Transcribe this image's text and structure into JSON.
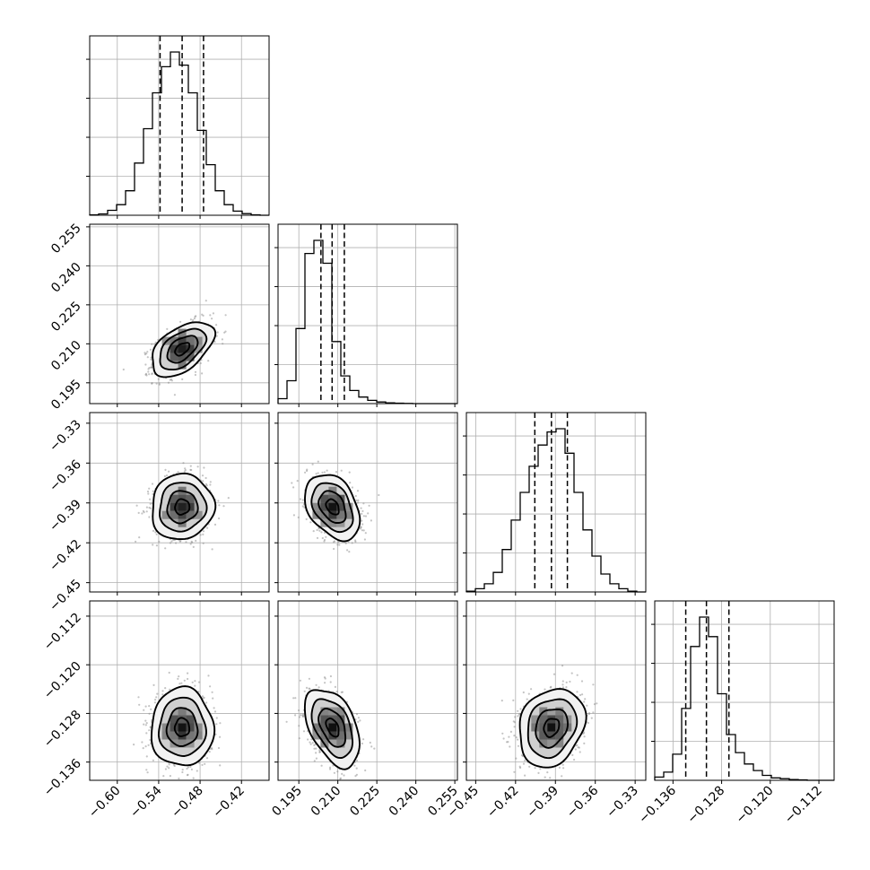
{
  "chart_data": {
    "type": "corner",
    "grid": true,
    "dim": 4,
    "params": [
      {
        "range": [
          -0.64,
          -0.38
        ],
        "ticks": [
          -0.6,
          -0.54,
          -0.48,
          -0.42
        ],
        "tick_labels": [
          "−0.60",
          "−0.54",
          "−0.48",
          "−0.42"
        ],
        "hist_range": [
          -0.64,
          -0.38
        ],
        "hist_counts": [
          0.3,
          0.8,
          3,
          6.5,
          15,
          32,
          53,
          75,
          91,
          100,
          92,
          75,
          52,
          31,
          15,
          6.5,
          2.5,
          1,
          0.3,
          0
        ],
        "quantiles": [
          -0.538,
          -0.506,
          -0.475
        ]
      },
      {
        "range": [
          0.187,
          0.256
        ],
        "ticks": [
          0.195,
          0.21,
          0.225,
          0.24,
          0.255
        ],
        "tick_labels": [
          "0.195",
          "0.210",
          "0.225",
          "0.240",
          "0.255"
        ],
        "hist_range": [
          0.187,
          0.256
        ],
        "hist_counts": [
          3,
          14,
          46,
          92,
          100,
          86,
          38,
          17,
          8,
          4,
          2,
          1,
          0.5,
          0.3,
          0.1,
          0,
          0,
          0,
          0,
          0
        ],
        "quantiles": [
          0.2035,
          0.2078,
          0.2125
        ]
      },
      {
        "range": [
          -0.457,
          -0.322
        ],
        "ticks": [
          -0.45,
          -0.42,
          -0.39,
          -0.36,
          -0.33
        ],
        "tick_labels": [
          "−0.45",
          "−0.42",
          "−0.39",
          "−0.36",
          "−0.33"
        ],
        "hist_range": [
          -0.457,
          -0.322
        ],
        "hist_counts": [
          0.5,
          2,
          5,
          12,
          26,
          44,
          61,
          77,
          90,
          98,
          100,
          85,
          61,
          38,
          22,
          11,
          5,
          2,
          0.5,
          0
        ],
        "quantiles": [
          -0.4055,
          -0.393,
          -0.381
        ]
      },
      {
        "range": [
          -0.139,
          -0.1095
        ],
        "ticks": [
          -0.136,
          -0.128,
          -0.12,
          -0.112
        ],
        "tick_labels": [
          "−0.136",
          "−0.128",
          "−0.120",
          "−0.112"
        ],
        "hist_range": [
          -0.139,
          -0.1095
        ],
        "hist_counts": [
          2,
          5,
          16,
          44,
          82,
          100,
          88,
          53,
          28,
          17,
          10,
          6,
          3,
          1.5,
          1,
          0.5,
          0.3,
          0,
          0,
          0
        ],
        "quantiles": [
          -0.1339,
          -0.1305,
          -0.1268
        ]
      }
    ],
    "pairs": [
      {
        "row": 1,
        "col": 0,
        "mean": [
          -0.506,
          0.208
        ],
        "sigma": [
          0.021,
          0.0049
        ],
        "rho": 0.5
      },
      {
        "row": 2,
        "col": 0,
        "mean": [
          -0.506,
          -0.393
        ],
        "sigma": [
          0.021,
          0.0115
        ],
        "rho": 0.05
      },
      {
        "row": 2,
        "col": 1,
        "mean": [
          0.208,
          -0.393
        ],
        "sigma": [
          0.0049,
          0.0115
        ],
        "rho": -0.35
      },
      {
        "row": 3,
        "col": 0,
        "mean": [
          -0.506,
          -0.1303
        ],
        "sigma": [
          0.021,
          0.003
        ],
        "rho": 0.0
      },
      {
        "row": 3,
        "col": 1,
        "mean": [
          0.208,
          -0.1303
        ],
        "sigma": [
          0.0049,
          0.003
        ],
        "rho": -0.45
      },
      {
        "row": 3,
        "col": 2,
        "mean": [
          -0.393,
          -0.1303
        ],
        "sigma": [
          0.0115,
          0.003
        ],
        "rho": 0.2
      }
    ]
  }
}
